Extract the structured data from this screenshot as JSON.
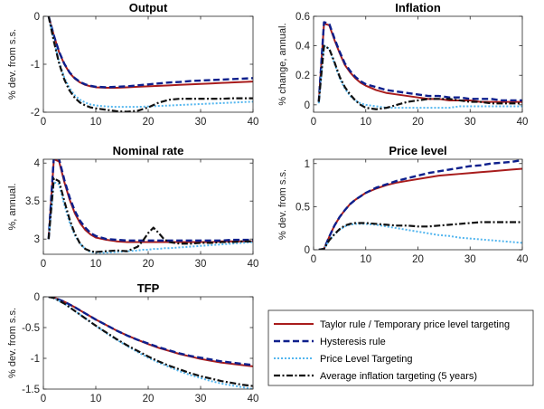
{
  "figure": {
    "background": "#ffffff",
    "axis_color": "#262626"
  },
  "legend": {
    "entries": [
      {
        "label": "Taylor rule / Temporary price level targeting",
        "color": "#a81c1c",
        "dash": "solid"
      },
      {
        "label": "Hysteresis rule",
        "color": "#0d1f8c",
        "dash": "dashed"
      },
      {
        "label": "Price Level Targeting",
        "color": "#53b6ef",
        "dash": "dotted"
      },
      {
        "label": "Average inflation targeting (5 years)",
        "color": "#111111",
        "dash": "dashdot"
      }
    ]
  },
  "chart_data": [
    {
      "type": "line",
      "title": "Output",
      "ylabel": "% dev. from s.s.",
      "xlim": [
        0,
        40
      ],
      "ylim": [
        -2,
        0
      ],
      "xticks": [
        0,
        10,
        20,
        30,
        40
      ],
      "xtick_labels": [
        "0",
        "10",
        "20",
        "30",
        "40"
      ],
      "yticks": [
        -2,
        -1,
        0
      ],
      "ytick_labels": [
        "-2",
        "-1",
        "0"
      ],
      "x": [
        1,
        2,
        3,
        4,
        5,
        6,
        7,
        8,
        9,
        10,
        12,
        14,
        16,
        18,
        20,
        22,
        24,
        26,
        28,
        30,
        32,
        34,
        36,
        38,
        40
      ],
      "series": [
        {
          "name": "Taylor rule / Temporary price level targeting",
          "values": [
            0,
            -0.4,
            -0.75,
            -1.0,
            -1.18,
            -1.3,
            -1.38,
            -1.43,
            -1.46,
            -1.48,
            -1.49,
            -1.49,
            -1.48,
            -1.47,
            -1.46,
            -1.45,
            -1.44,
            -1.43,
            -1.42,
            -1.41,
            -1.4,
            -1.39,
            -1.38,
            -1.37,
            -1.36
          ]
        },
        {
          "name": "Hysteresis rule",
          "values": [
            0,
            -0.4,
            -0.74,
            -0.99,
            -1.17,
            -1.29,
            -1.37,
            -1.42,
            -1.45,
            -1.47,
            -1.48,
            -1.47,
            -1.46,
            -1.44,
            -1.42,
            -1.4,
            -1.38,
            -1.37,
            -1.35,
            -1.34,
            -1.33,
            -1.32,
            -1.31,
            -1.3,
            -1.29
          ]
        },
        {
          "name": "Price Level Targeting",
          "values": [
            0,
            -0.5,
            -0.95,
            -1.28,
            -1.5,
            -1.65,
            -1.74,
            -1.8,
            -1.84,
            -1.86,
            -1.88,
            -1.89,
            -1.89,
            -1.89,
            -1.88,
            -1.87,
            -1.86,
            -1.85,
            -1.84,
            -1.83,
            -1.82,
            -1.81,
            -1.8,
            -1.79,
            -1.78
          ]
        },
        {
          "name": "Average inflation targeting (5 years)",
          "values": [
            0,
            -0.52,
            -0.98,
            -1.32,
            -1.55,
            -1.7,
            -1.8,
            -1.86,
            -1.9,
            -1.92,
            -1.95,
            -1.98,
            -1.99,
            -1.97,
            -1.9,
            -1.8,
            -1.74,
            -1.72,
            -1.72,
            -1.72,
            -1.72,
            -1.72,
            -1.71,
            -1.71,
            -1.71
          ]
        }
      ]
    },
    {
      "type": "line",
      "title": "Inflation",
      "ylabel": "% change, annual.",
      "xlim": [
        0,
        40
      ],
      "ylim": [
        -0.05,
        0.6
      ],
      "xticks": [
        0,
        10,
        20,
        30,
        40
      ],
      "xtick_labels": [
        "0",
        "10",
        "20",
        "30",
        "40"
      ],
      "yticks": [
        0,
        0.2,
        0.4,
        0.6
      ],
      "ytick_labels": [
        "0",
        "0.2",
        "0.4",
        "0.6"
      ],
      "x": [
        1,
        2,
        3,
        4,
        5,
        6,
        7,
        8,
        9,
        10,
        12,
        14,
        16,
        18,
        20,
        22,
        24,
        26,
        28,
        30,
        32,
        34,
        36,
        38,
        40
      ],
      "series": [
        {
          "name": "Taylor rule / Temporary price level targeting",
          "values": [
            0.02,
            0.55,
            0.54,
            0.44,
            0.35,
            0.27,
            0.22,
            0.18,
            0.15,
            0.13,
            0.1,
            0.08,
            0.07,
            0.06,
            0.05,
            0.04,
            0.04,
            0.03,
            0.03,
            0.03,
            0.02,
            0.02,
            0.02,
            0.02,
            0.02
          ]
        },
        {
          "name": "Hysteresis rule",
          "values": [
            0.02,
            0.56,
            0.55,
            0.45,
            0.36,
            0.28,
            0.23,
            0.19,
            0.16,
            0.14,
            0.12,
            0.1,
            0.09,
            0.08,
            0.07,
            0.06,
            0.06,
            0.05,
            0.05,
            0.04,
            0.04,
            0.04,
            0.03,
            0.03,
            0.03
          ]
        },
        {
          "name": "Price Level Targeting",
          "values": [
            0.01,
            0.4,
            0.38,
            0.28,
            0.18,
            0.11,
            0.06,
            0.03,
            0.01,
            0,
            -0.01,
            -0.02,
            -0.02,
            -0.02,
            -0.02,
            -0.02,
            -0.02,
            -0.02,
            -0.01,
            -0.01,
            -0.01,
            -0.01,
            -0.01,
            -0.01,
            -0.01
          ]
        },
        {
          "name": "Average inflation targeting (5 years)",
          "values": [
            0.02,
            0.4,
            0.38,
            0.29,
            0.19,
            0.12,
            0.07,
            0.03,
            0,
            -0.02,
            -0.03,
            -0.02,
            0,
            0.02,
            0.03,
            0.04,
            0.04,
            0.04,
            0.03,
            0.02,
            0.02,
            0.01,
            0.01,
            0.01,
            0.01
          ]
        }
      ]
    },
    {
      "type": "line",
      "title": "Nominal rate",
      "ylabel": "%, annual.",
      "xlim": [
        0,
        40
      ],
      "ylim": [
        2.8,
        4.05
      ],
      "xticks": [
        0,
        10,
        20,
        30,
        40
      ],
      "xtick_labels": [
        "0",
        "10",
        "20",
        "30",
        "40"
      ],
      "yticks": [
        3,
        3.5,
        4
      ],
      "ytick_labels": [
        "3",
        "3.5",
        "4"
      ],
      "x": [
        1,
        2,
        3,
        4,
        5,
        6,
        7,
        8,
        9,
        10,
        12,
        14,
        16,
        18,
        19,
        20,
        21,
        22,
        23,
        24,
        26,
        28,
        30,
        32,
        34,
        36,
        38,
        40
      ],
      "series": [
        {
          "name": "Taylor rule / Temporary price level targeting",
          "values": [
            3.0,
            4.05,
            4.02,
            3.75,
            3.52,
            3.34,
            3.21,
            3.12,
            3.06,
            3.02,
            2.99,
            2.97,
            2.96,
            2.96,
            2.96,
            2.96,
            2.96,
            2.96,
            2.96,
            2.96,
            2.96,
            2.96,
            2.96,
            2.96,
            2.97,
            2.97,
            2.97,
            2.97
          ]
        },
        {
          "name": "Hysteresis rule",
          "values": [
            3.0,
            4.08,
            4.05,
            3.78,
            3.55,
            3.37,
            3.24,
            3.15,
            3.08,
            3.04,
            3.0,
            2.99,
            2.98,
            2.98,
            2.98,
            2.98,
            2.98,
            2.98,
            2.98,
            2.98,
            2.98,
            2.98,
            2.98,
            2.98,
            2.98,
            2.99,
            2.99,
            2.99
          ]
        },
        {
          "name": "Price Level Targeting",
          "values": [
            3.0,
            3.75,
            3.72,
            3.45,
            3.22,
            3.05,
            2.94,
            2.87,
            2.83,
            2.82,
            2.82,
            2.83,
            2.84,
            2.85,
            2.86,
            2.86,
            2.87,
            2.87,
            2.88,
            2.88,
            2.89,
            2.9,
            2.91,
            2.92,
            2.93,
            2.94,
            2.95,
            2.96
          ]
        },
        {
          "name": "Average inflation targeting (5 years)",
          "values": [
            3.0,
            3.8,
            3.76,
            3.5,
            3.26,
            3.07,
            2.94,
            2.87,
            2.84,
            2.83,
            2.84,
            2.85,
            2.84,
            2.9,
            2.98,
            3.08,
            3.15,
            3.08,
            3.0,
            2.96,
            2.94,
            2.94,
            2.95,
            2.95,
            2.96,
            2.96,
            2.97,
            2.97
          ]
        }
      ]
    },
    {
      "type": "line",
      "title": "Price level",
      "ylabel": "% dev. from s.s.",
      "xlim": [
        0,
        40
      ],
      "ylim": [
        0,
        1.05
      ],
      "xticks": [
        0,
        10,
        20,
        30,
        40
      ],
      "xtick_labels": [
        "0",
        "10",
        "20",
        "30",
        "40"
      ],
      "yticks": [
        0,
        0.5,
        1
      ],
      "ytick_labels": [
        "0",
        "0.5",
        "1"
      ],
      "x": [
        1,
        2,
        3,
        4,
        5,
        6,
        7,
        8,
        9,
        10,
        12,
        14,
        16,
        18,
        20,
        22,
        24,
        26,
        28,
        30,
        32,
        34,
        36,
        38,
        40
      ],
      "series": [
        {
          "name": "Taylor rule / Temporary price level targeting",
          "values": [
            0,
            0.01,
            0.15,
            0.28,
            0.38,
            0.46,
            0.53,
            0.58,
            0.62,
            0.66,
            0.71,
            0.75,
            0.78,
            0.8,
            0.82,
            0.84,
            0.86,
            0.87,
            0.88,
            0.89,
            0.9,
            0.91,
            0.92,
            0.93,
            0.94
          ]
        },
        {
          "name": "Hysteresis rule",
          "values": [
            0,
            0.01,
            0.15,
            0.28,
            0.38,
            0.46,
            0.53,
            0.58,
            0.62,
            0.66,
            0.72,
            0.76,
            0.8,
            0.83,
            0.86,
            0.89,
            0.91,
            0.93,
            0.95,
            0.97,
            0.98,
            1.0,
            1.01,
            1.02,
            1.04
          ]
        },
        {
          "name": "Price Level Targeting",
          "values": [
            0,
            0.01,
            0.11,
            0.18,
            0.23,
            0.27,
            0.29,
            0.3,
            0.3,
            0.3,
            0.29,
            0.27,
            0.25,
            0.23,
            0.21,
            0.19,
            0.17,
            0.16,
            0.14,
            0.13,
            0.12,
            0.11,
            0.1,
            0.09,
            0.08
          ]
        },
        {
          "name": "Average inflation targeting (5 years)",
          "values": [
            0,
            0.01,
            0.11,
            0.18,
            0.24,
            0.28,
            0.3,
            0.31,
            0.31,
            0.31,
            0.3,
            0.29,
            0.28,
            0.28,
            0.27,
            0.27,
            0.28,
            0.29,
            0.3,
            0.31,
            0.32,
            0.32,
            0.32,
            0.32,
            0.32
          ]
        }
      ]
    },
    {
      "type": "line",
      "title": "TFP",
      "ylabel": "% dev. from s.s.",
      "xlim": [
        0,
        40
      ],
      "ylim": [
        -1.5,
        0
      ],
      "xticks": [
        0,
        10,
        20,
        30,
        40
      ],
      "xtick_labels": [
        "0",
        "10",
        "20",
        "30",
        "40"
      ],
      "yticks": [
        -1.5,
        -1,
        -0.5,
        0
      ],
      "ytick_labels": [
        "-1.5",
        "-1",
        "-0.5",
        "0"
      ],
      "x": [
        1,
        2,
        4,
        6,
        8,
        10,
        12,
        14,
        16,
        18,
        20,
        22,
        24,
        26,
        28,
        30,
        32,
        34,
        36,
        38,
        40
      ],
      "series": [
        {
          "name": "Taylor rule / Temporary price level targeting",
          "values": [
            0,
            -0.01,
            -0.08,
            -0.17,
            -0.27,
            -0.37,
            -0.46,
            -0.55,
            -0.63,
            -0.7,
            -0.77,
            -0.83,
            -0.88,
            -0.93,
            -0.97,
            -1.01,
            -1.04,
            -1.07,
            -1.09,
            -1.11,
            -1.13
          ]
        },
        {
          "name": "Hysteresis rule",
          "values": [
            0,
            -0.01,
            -0.08,
            -0.17,
            -0.27,
            -0.37,
            -0.46,
            -0.55,
            -0.63,
            -0.7,
            -0.76,
            -0.82,
            -0.87,
            -0.92,
            -0.96,
            -0.99,
            -1.02,
            -1.05,
            -1.07,
            -1.09,
            -1.11
          ]
        },
        {
          "name": "Price Level Targeting",
          "values": [
            0,
            -0.02,
            -0.11,
            -0.23,
            -0.35,
            -0.47,
            -0.59,
            -0.7,
            -0.8,
            -0.9,
            -0.99,
            -1.07,
            -1.14,
            -1.21,
            -1.27,
            -1.32,
            -1.37,
            -1.41,
            -1.44,
            -1.47,
            -1.5
          ]
        },
        {
          "name": "Average inflation targeting (5 years)",
          "values": [
            0,
            -0.02,
            -0.11,
            -0.23,
            -0.35,
            -0.47,
            -0.58,
            -0.69,
            -0.79,
            -0.88,
            -0.97,
            -1.05,
            -1.12,
            -1.18,
            -1.24,
            -1.29,
            -1.33,
            -1.37,
            -1.4,
            -1.43,
            -1.45
          ]
        }
      ]
    }
  ]
}
